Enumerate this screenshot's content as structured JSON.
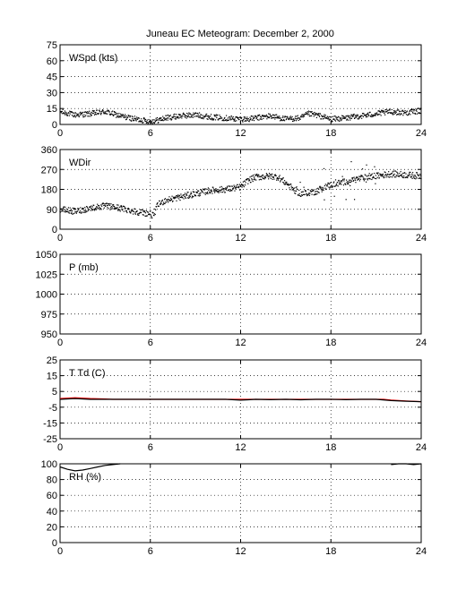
{
  "title": "Juneau EC Meteogram:  December  2, 2000",
  "chart_data": [
    {
      "type": "scatter",
      "label": "WSpd (kts)",
      "xlim": [
        0,
        24
      ],
      "xticks": [
        0,
        6,
        12,
        18,
        24
      ],
      "ylim": [
        0,
        75
      ],
      "yticks": [
        0,
        15,
        30,
        45,
        60,
        75
      ],
      "grid": true,
      "series": [
        {
          "color": "#000000",
          "anchors": [
            [
              0,
              12
            ],
            [
              1,
              9
            ],
            [
              2,
              10
            ],
            [
              3,
              12
            ],
            [
              4,
              8
            ],
            [
              5,
              5
            ],
            [
              5.5,
              4
            ],
            [
              6,
              3
            ],
            [
              6.5,
              4
            ],
            [
              7,
              6
            ],
            [
              8,
              8
            ],
            [
              9,
              9
            ],
            [
              10,
              7
            ],
            [
              11,
              6
            ],
            [
              12,
              5
            ],
            [
              12.5,
              5
            ],
            [
              13,
              6
            ],
            [
              14,
              8
            ],
            [
              15,
              5
            ],
            [
              16,
              6
            ],
            [
              16.5,
              10
            ],
            [
              17,
              9
            ],
            [
              18,
              5
            ],
            [
              19,
              6
            ],
            [
              20,
              8
            ],
            [
              21,
              10
            ],
            [
              22,
              12
            ],
            [
              23,
              11
            ],
            [
              24,
              13
            ]
          ]
        }
      ]
    },
    {
      "type": "scatter",
      "label": "WDir",
      "xlim": [
        0,
        24
      ],
      "xticks": [
        0,
        6,
        12,
        18,
        24
      ],
      "ylim": [
        0,
        360
      ],
      "yticks": [
        0,
        90,
        180,
        270,
        360
      ],
      "grid": true,
      "series": [
        {
          "color": "#000000",
          "anchors": [
            [
              0,
              90
            ],
            [
              1,
              80
            ],
            [
              2,
              95
            ],
            [
              3,
              105
            ],
            [
              4,
              95
            ],
            [
              5,
              80
            ],
            [
              6,
              70
            ],
            [
              6.2,
              60
            ],
            [
              6.5,
              110
            ],
            [
              7,
              130
            ],
            [
              8,
              145
            ],
            [
              9,
              160
            ],
            [
              10,
              175
            ],
            [
              11,
              180
            ],
            [
              11.5,
              185
            ],
            [
              12,
              190
            ],
            [
              12.5,
              220
            ],
            [
              13,
              235
            ],
            [
              14,
              240
            ],
            [
              14.5,
              235
            ],
            [
              15,
              210
            ],
            [
              15.5,
              180
            ],
            [
              16,
              160
            ],
            [
              17,
              170
            ],
            [
              17.5,
              190
            ],
            [
              18,
              200
            ],
            [
              19,
              215
            ],
            [
              20,
              230
            ],
            [
              21,
              240
            ],
            [
              22,
              250
            ],
            [
              23,
              245
            ],
            [
              24,
              240
            ]
          ]
        }
      ]
    },
    {
      "type": "line",
      "label": "P (mb)",
      "xlim": [
        0,
        24
      ],
      "xticks": [
        0,
        6,
        12,
        18,
        24
      ],
      "ylim": [
        950,
        1050
      ],
      "yticks": [
        950,
        975,
        1000,
        1025,
        1050
      ],
      "grid": true,
      "series": []
    },
    {
      "type": "line",
      "label": "T Td (C)",
      "xlim": [
        0,
        24
      ],
      "xticks": [
        0,
        6,
        12,
        18,
        24
      ],
      "ylim": [
        -25,
        25
      ],
      "yticks": [
        -25,
        -15,
        -5,
        5,
        15,
        25
      ],
      "grid": true,
      "series": [
        {
          "color": "#ff0000",
          "points": [
            [
              0,
              0.5
            ],
            [
              1,
              1
            ],
            [
              2,
              0.5
            ],
            [
              3,
              0.2
            ],
            [
              3.5,
              0
            ],
            [
              21.5,
              0
            ],
            [
              22,
              -0.5
            ],
            [
              23,
              -1
            ],
            [
              24,
              -1.5
            ]
          ]
        },
        {
          "color": "#000000",
          "points": [
            [
              0,
              0
            ],
            [
              1,
              0.5
            ],
            [
              2,
              0
            ],
            [
              3,
              0
            ],
            [
              4,
              0
            ],
            [
              6,
              0
            ],
            [
              10,
              0
            ],
            [
              11,
              0
            ],
            [
              12,
              -0.5
            ],
            [
              12.5,
              -0.3
            ],
            [
              13,
              0
            ],
            [
              14,
              -0.2
            ],
            [
              15,
              0
            ],
            [
              16,
              -0.3
            ],
            [
              17,
              0
            ],
            [
              18,
              0
            ],
            [
              19,
              -0.2
            ],
            [
              20,
              0
            ],
            [
              21,
              0
            ],
            [
              22,
              -0.8
            ],
            [
              23,
              -1.2
            ],
            [
              24,
              -1.5
            ]
          ]
        }
      ]
    },
    {
      "type": "line",
      "label": "RH (%)",
      "xlim": [
        0,
        24
      ],
      "xticks": [
        0,
        6,
        12,
        18,
        24
      ],
      "ylim": [
        0,
        100
      ],
      "yticks": [
        0,
        20,
        40,
        60,
        80,
        100
      ],
      "grid": true,
      "series": [
        {
          "color": "#000000",
          "points": [
            [
              0,
              96
            ],
            [
              0.5,
              93
            ],
            [
              1,
              91
            ],
            [
              1.5,
              92
            ],
            [
              2,
              94
            ],
            [
              2.5,
              96
            ],
            [
              3,
              98
            ],
            [
              3.5,
              99
            ],
            [
              4,
              100
            ]
          ]
        },
        {
          "color": "#000000",
          "points": [
            [
              22,
              99
            ],
            [
              22.5,
              100
            ],
            [
              23,
              100
            ],
            [
              23.5,
              99
            ],
            [
              24,
              100
            ]
          ]
        }
      ]
    }
  ]
}
